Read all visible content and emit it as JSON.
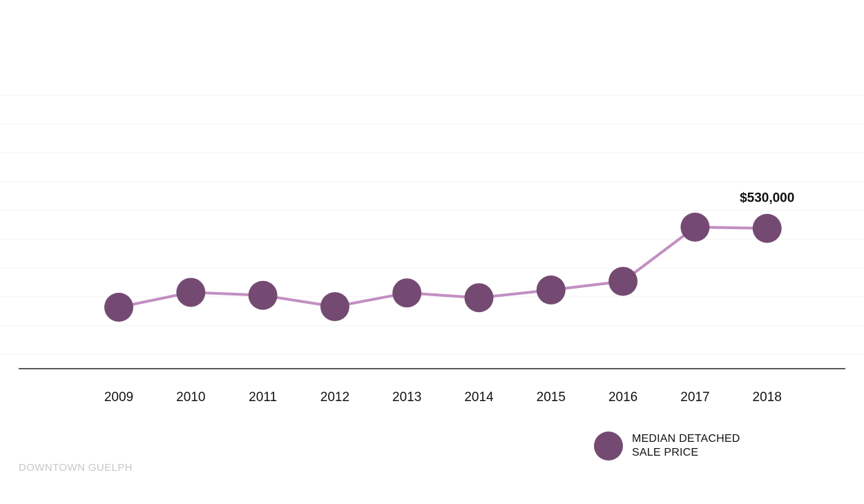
{
  "chart_data": {
    "type": "line",
    "title": "",
    "xlabel": "",
    "ylabel": "",
    "categories": [
      "2009",
      "2010",
      "2011",
      "2012",
      "2013",
      "2014",
      "2015",
      "2016",
      "2017",
      "2018"
    ],
    "series": [
      {
        "name": "MEDIAN DETACHED SALE PRICE",
        "values": [
          265000,
          315000,
          305000,
          267000,
          313000,
          297000,
          323000,
          352000,
          534000,
          530000
        ]
      }
    ],
    "data_labels": [
      {
        "category": "2018",
        "text": "$530,000"
      }
    ],
    "legend_position": "bottom-right",
    "grid": true,
    "y_axis_labels_shown": false,
    "colors": {
      "marker": "#744a72",
      "line": "#c28fc3",
      "axis": "#222222",
      "grid": "#f4f4f4"
    }
  },
  "legend": {
    "label": "MEDIAN DETACHED SALE PRICE"
  },
  "source": "DOWNTOWN GUELPH"
}
